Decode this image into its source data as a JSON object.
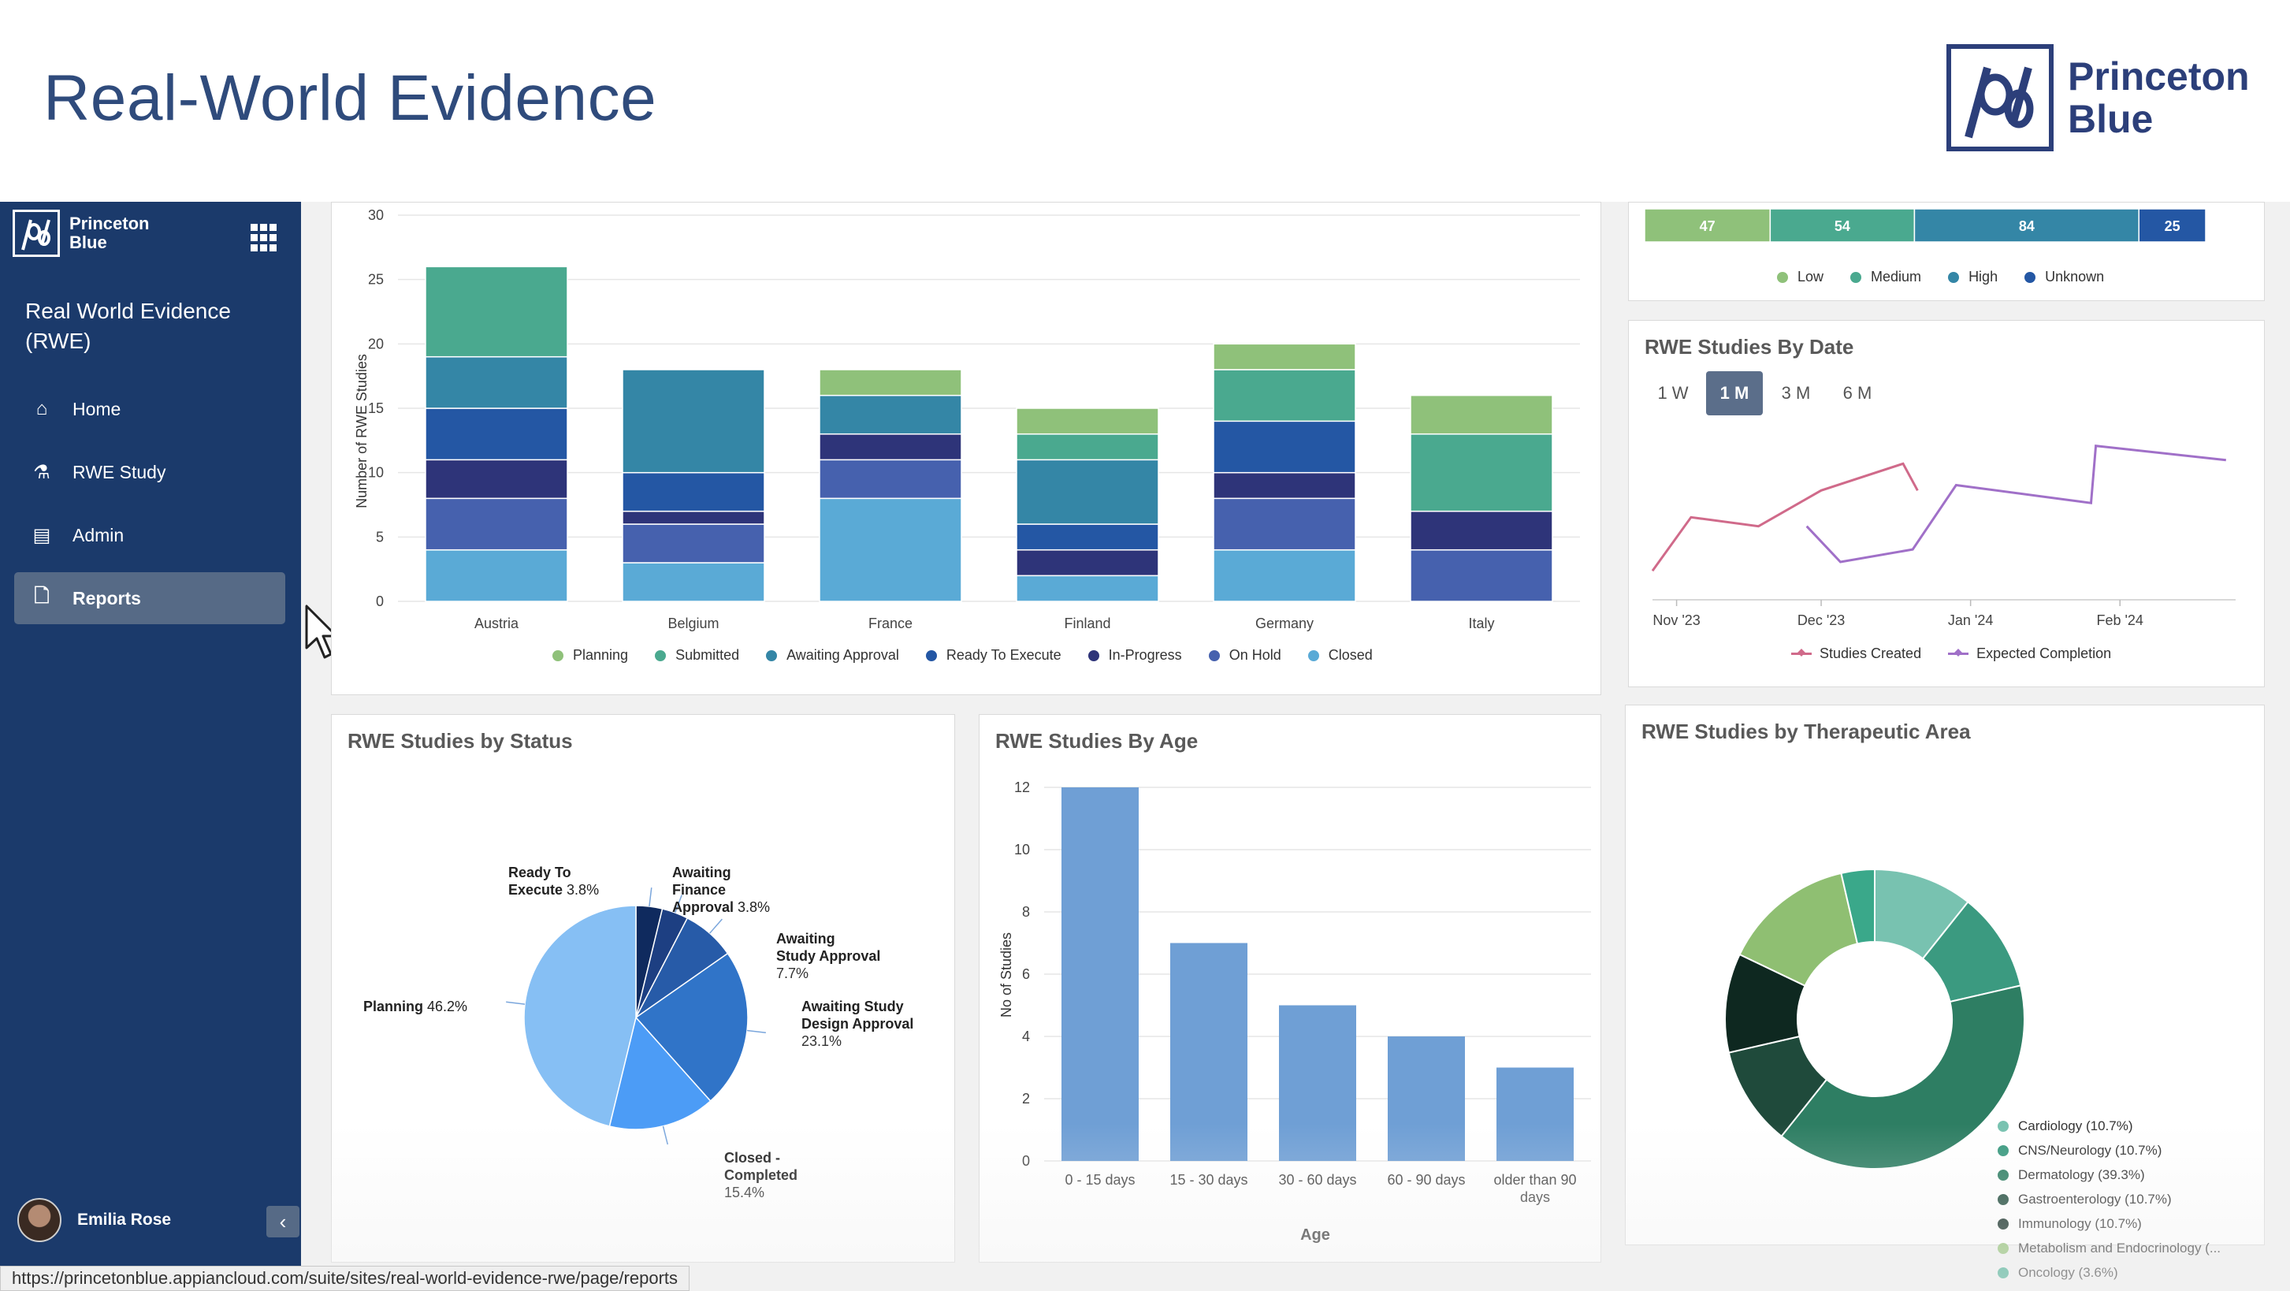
{
  "slide": {
    "title": "Real-World Evidence",
    "brand_line1": "Princeton",
    "brand_line2": "Blue"
  },
  "sidebar": {
    "logo_line1": "Princeton",
    "logo_line2": "Blue",
    "app_title": "Real World Evidence (RWE)",
    "items": [
      {
        "label": "Home",
        "icon": "home-icon"
      },
      {
        "label": "RWE Study",
        "icon": "flask-icon"
      },
      {
        "label": "Admin",
        "icon": "admin-icon"
      },
      {
        "label": "Reports",
        "icon": "document-icon",
        "active": true
      }
    ],
    "user_name": "Emilia Rose",
    "collapse_glyph": "‹"
  },
  "status_url": "https://princetonblue.appiancloud.com/suite/sites/real-world-evidence-rwe/page/reports",
  "colors": {
    "sidebar_bg": "#1b3a6b",
    "title_blue": "#2f4b7c",
    "country_series": [
      "#8fc17a",
      "#4aa98f",
      "#3486a6",
      "#2457a4",
      "#2e3479",
      "#4661ae",
      "#5aaad6"
    ],
    "risk": [
      "#8fc17a",
      "#4aa98f",
      "#3486a6",
      "#2457a4"
    ],
    "status_slices": [
      "#86bff4",
      "#4c9cf6",
      "#3074c8",
      "#275ba8",
      "#1d3f82",
      "#0f2a5e"
    ],
    "age_bar": "#6f9fd5",
    "therapeutic": [
      "#78c2b0",
      "#3b9a80",
      "#2e7e63",
      "#1f4a3b",
      "#0e2820",
      "#8fbf72",
      "#3aa88a"
    ],
    "line_created": "#d06a8a",
    "line_expected": "#a070c8"
  },
  "chart_data": [
    {
      "id": "studies_by_country",
      "type": "bar",
      "stacked": true,
      "title": "",
      "ylabel": "Number of RWE Studies",
      "ylim": [
        0,
        30
      ],
      "yticks": [
        0,
        5,
        10,
        15,
        20,
        25,
        30
      ],
      "categories": [
        "Austria",
        "Belgium",
        "France",
        "Finland",
        "Germany",
        "Italy"
      ],
      "series": [
        {
          "name": "Planning",
          "values": [
            0,
            0,
            2,
            2,
            2,
            3
          ]
        },
        {
          "name": "Submitted",
          "values": [
            7,
            0,
            0,
            2,
            4,
            6
          ]
        },
        {
          "name": "Awaiting Approval",
          "values": [
            4,
            8,
            3,
            5,
            0,
            0
          ]
        },
        {
          "name": "Ready To Execute",
          "values": [
            4,
            3,
            0,
            2,
            4,
            0
          ]
        },
        {
          "name": "In-Progress",
          "values": [
            3,
            1,
            2,
            2,
            2,
            3
          ]
        },
        {
          "name": "On Hold",
          "values": [
            4,
            3,
            3,
            0,
            4,
            4
          ]
        },
        {
          "name": "Closed",
          "values": [
            4,
            3,
            8,
            2,
            4,
            0
          ]
        }
      ],
      "legend_position": "bottom"
    },
    {
      "id": "studies_by_risk",
      "type": "bar",
      "stacked": true,
      "orientation": "horizontal",
      "title": "",
      "series": [
        {
          "name": "Low",
          "values": [
            47
          ]
        },
        {
          "name": "Medium",
          "values": [
            54
          ]
        },
        {
          "name": "High",
          "values": [
            84
          ]
        },
        {
          "name": "Unknown",
          "values": [
            25
          ]
        }
      ],
      "legend_position": "bottom"
    },
    {
      "id": "studies_by_date",
      "type": "line",
      "title": "RWE Studies By Date",
      "ranges": [
        "1 W",
        "1 M",
        "3 M",
        "6 M"
      ],
      "selected_range": "1 M",
      "xticks": [
        "Nov '23",
        "Dec '23",
        "Jan '24",
        "Feb '24"
      ],
      "xlim": [
        "2023-10-27",
        "2024-02-25"
      ],
      "ylim": [
        0,
        12
      ],
      "series": [
        {
          "name": "Studies Created",
          "x": [
            "2023-10-27",
            "2023-11-04",
            "2023-11-18",
            "2023-12-01",
            "2023-12-18",
            "2023-12-21"
          ],
          "values": [
            1,
            4,
            3.5,
            5.5,
            7,
            5.5
          ]
        },
        {
          "name": "Expected Completion",
          "x": [
            "2023-11-28",
            "2023-12-05",
            "2023-12-20",
            "2023-12-29",
            "2024-01-26",
            "2024-01-27",
            "2024-02-23"
          ],
          "values": [
            3.5,
            1.5,
            2.2,
            5.8,
            4.8,
            8,
            7.2
          ]
        }
      ],
      "legend_position": "bottom"
    },
    {
      "id": "studies_by_status",
      "type": "pie",
      "title": "RWE Studies by Status",
      "slices": [
        {
          "label": "Planning",
          "value": 46.2,
          "display": "46.2%"
        },
        {
          "label": "Closed - Completed",
          "value": 15.4,
          "display": "15.4%"
        },
        {
          "label": "Awaiting Study Design Approval",
          "value": 23.1,
          "display": "23.1%"
        },
        {
          "label": "Awaiting Study Approval",
          "value": 7.7,
          "display": "7.7%"
        },
        {
          "label": "Awaiting Finance Approval",
          "value": 3.8,
          "display": "3.8%"
        },
        {
          "label": "Ready To Execute",
          "value": 3.8,
          "display": "3.8%"
        }
      ]
    },
    {
      "id": "studies_by_age",
      "type": "bar",
      "title": "RWE Studies By Age",
      "xlabel": "Age",
      "ylabel": "No of Studies",
      "ylim": [
        0,
        12
      ],
      "yticks": [
        0,
        2,
        4,
        6,
        8,
        10,
        12
      ],
      "categories": [
        "0 - 15 days",
        "15 - 30 days",
        "30 - 60 days",
        "60 - 90 days",
        "older than 90 days"
      ],
      "values": [
        12,
        7,
        5,
        4,
        3
      ]
    },
    {
      "id": "studies_by_therapeutic_area",
      "type": "pie",
      "donut": true,
      "title": "RWE Studies by Therapeutic Area",
      "slices": [
        {
          "label": "Cardiology (10.7%)",
          "value": 10.7
        },
        {
          "label": "CNS/Neurology (10.7%)",
          "value": 10.7
        },
        {
          "label": "Dermatology (39.3%)",
          "value": 39.3
        },
        {
          "label": "Gastroenterology (10.7%)",
          "value": 10.7
        },
        {
          "label": "Immunology (10.7%)",
          "value": 10.7
        },
        {
          "label": "Metabolism and Endocrinology (...",
          "value": 14.3
        },
        {
          "label": "Oncology (3.6%)",
          "value": 3.6
        }
      ],
      "legend_position": "right"
    }
  ]
}
